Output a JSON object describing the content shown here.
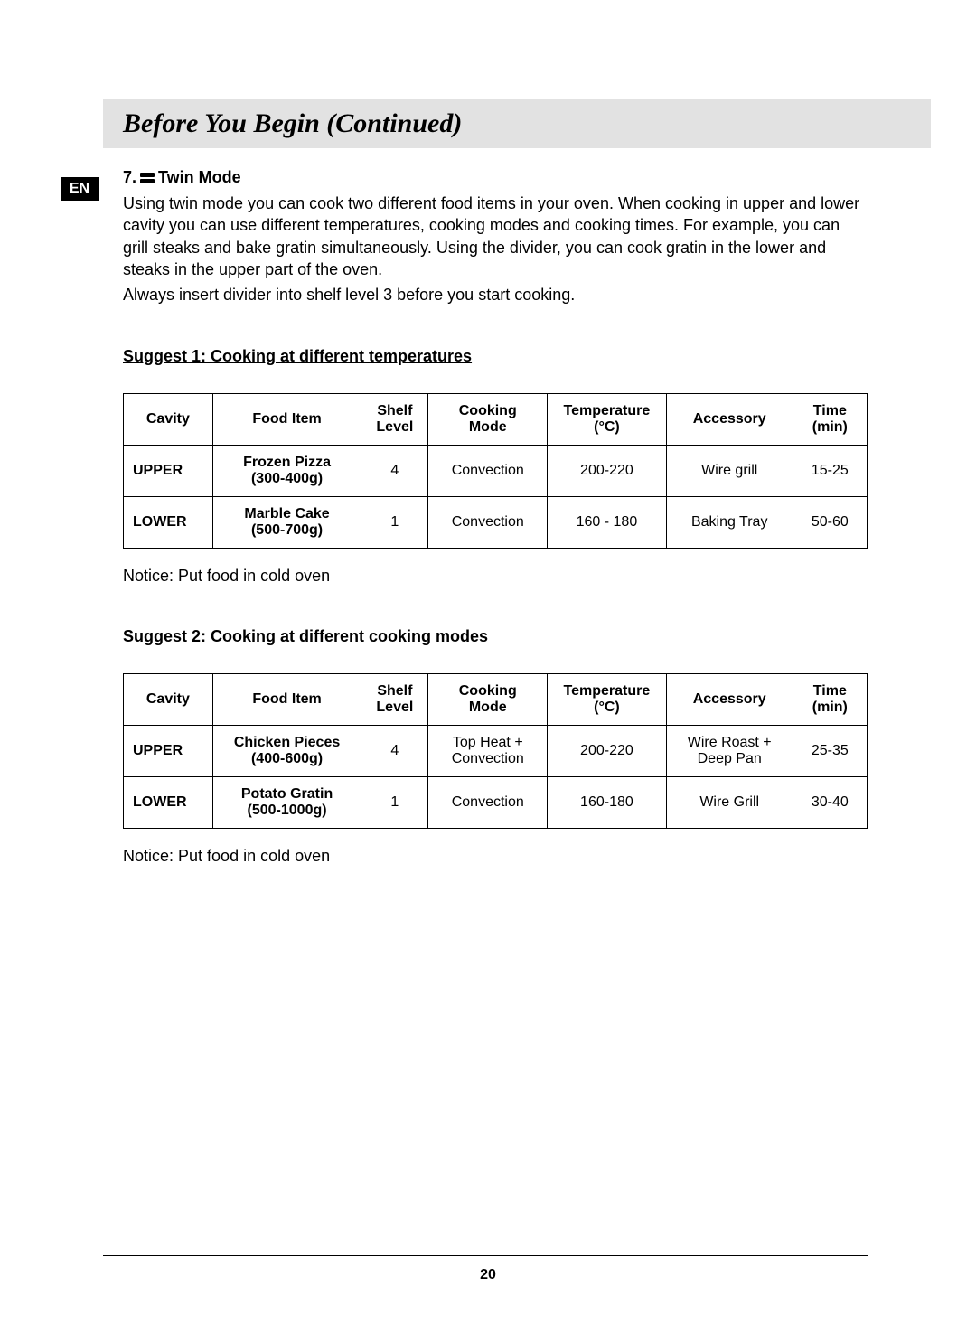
{
  "header": {
    "title": "Before You Begin (Continued)"
  },
  "lang_badge": "EN",
  "section": {
    "number": "7.",
    "title": "Twin Mode",
    "paragraphs": [
      "Using twin mode you can cook two different food items in your oven. When cooking in upper and lower cavity you can use different temperatures, cooking modes and cooking times. For example, you can grill steaks and bake gratin simultaneously. Using the divider, you can cook gratin in the lower and steaks in the upper part of the oven.",
      "Always insert divider into shelf level 3 before you start cooking."
    ]
  },
  "tables": {
    "columns": [
      {
        "label": "Cavity",
        "sub": ""
      },
      {
        "label": "Food Item",
        "sub": ""
      },
      {
        "label": "Shelf",
        "sub": "Level"
      },
      {
        "label": "Cooking",
        "sub": "Mode"
      },
      {
        "label": "Temperature",
        "sub": "(°C)"
      },
      {
        "label": "Accessory",
        "sub": ""
      },
      {
        "label": "Time",
        "sub": "(min)"
      }
    ]
  },
  "suggest1": {
    "heading": "Suggest 1:  Cooking at different temperatures",
    "rows": [
      {
        "cavity": "UPPER",
        "food": "Frozen Pizza",
        "weight": "(300-400g)",
        "shelf": "4",
        "mode": "Convection",
        "temp": "200-220",
        "acc": "Wire grill",
        "time": "15-25"
      },
      {
        "cavity": "LOWER",
        "food": "Marble Cake",
        "weight": "(500-700g)",
        "shelf": "1",
        "mode": "Convection",
        "temp": "160 - 180",
        "acc": "Baking Tray",
        "time": "50-60"
      }
    ],
    "notice": "Notice: Put food in cold oven"
  },
  "suggest2": {
    "heading": "Suggest 2:  Cooking at different cooking modes",
    "rows": [
      {
        "cavity": "UPPER",
        "food": "Chicken Pieces",
        "weight": "(400-600g)",
        "shelf": "4",
        "mode": "Top Heat + Convection",
        "temp": "200-220",
        "acc": "Wire Roast + Deep Pan",
        "time": "25-35"
      },
      {
        "cavity": "LOWER",
        "food": "Potato Gratin",
        "weight": "(500-1000g)",
        "shelf": "1",
        "mode": "Convection",
        "temp": "160-180",
        "acc": "Wire Grill",
        "time": "30-40"
      }
    ],
    "notice": "Notice: Put food in cold oven"
  },
  "page_number": "20"
}
